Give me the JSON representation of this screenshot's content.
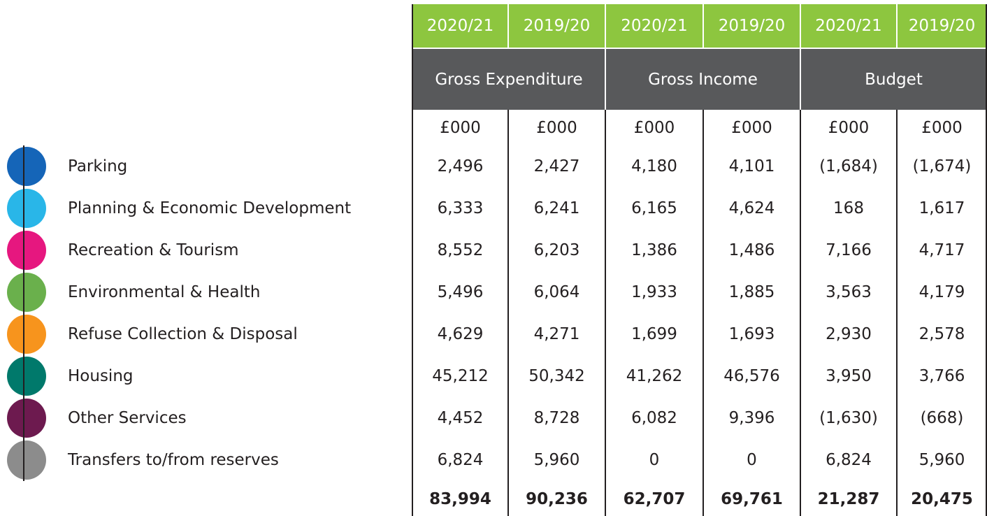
{
  "table": {
    "years": [
      "2020/21",
      "2019/20",
      "2020/21",
      "2019/20",
      "2020/21",
      "2019/20"
    ],
    "groups": [
      "Gross Expenditure",
      "Gross Income",
      "Budget"
    ],
    "units": [
      "£000",
      "£000",
      "£000",
      "£000",
      "£000",
      "£000"
    ],
    "rows": [
      {
        "label": "Parking",
        "values": [
          "2,496",
          "2,427",
          "4,180",
          "4,101",
          "(1,684)",
          "(1,674)"
        ]
      },
      {
        "label": "Planning & Economic Development",
        "values": [
          "6,333",
          "6,241",
          "6,165",
          "4,624",
          "168",
          "1,617"
        ]
      },
      {
        "label": "Recreation & Tourism",
        "values": [
          "8,552",
          "6,203",
          "1,386",
          "1,486",
          "7,166",
          "4,717"
        ]
      },
      {
        "label": "Environmental & Health",
        "values": [
          "5,496",
          "6,064",
          "1,933",
          "1,885",
          "3,563",
          "4,179"
        ]
      },
      {
        "label": "Refuse Collection & Disposal",
        "values": [
          "4,629",
          "4,271",
          "1,699",
          "1,693",
          "2,930",
          "2,578"
        ]
      },
      {
        "label": "Housing",
        "values": [
          "45,212",
          "50,342",
          "41,262",
          "46,576",
          "3,950",
          "3,766"
        ]
      },
      {
        "label": "Other Services",
        "values": [
          "4,452",
          "8,728",
          "6,082",
          "9,396",
          "(1,630)",
          "(668)"
        ]
      },
      {
        "label": "Transfers to/from reserves",
        "values": [
          "6,824",
          "5,960",
          "0",
          "0",
          "6,824",
          "5,960"
        ]
      }
    ],
    "totals": [
      "83,994",
      "90,236",
      "62,707",
      "69,761",
      "21,287",
      "20,475"
    ]
  }
}
